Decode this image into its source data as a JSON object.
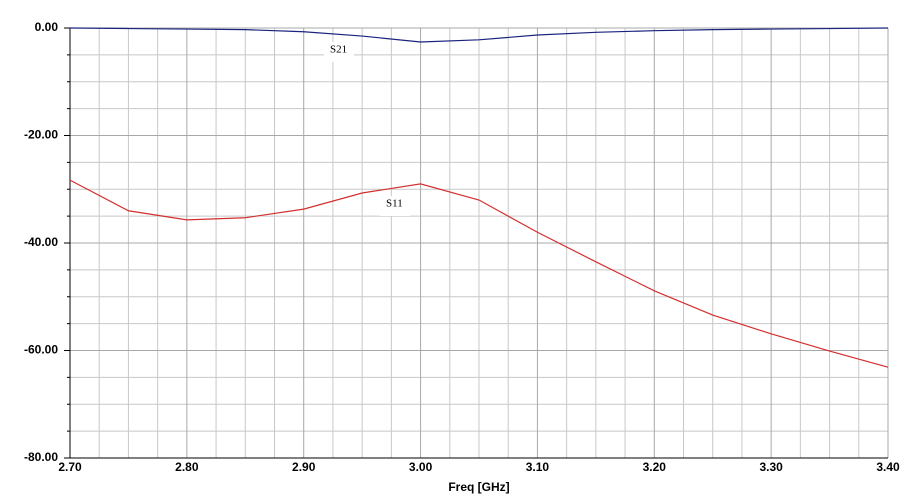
{
  "chart_data": {
    "type": "line",
    "x_label": "Freq [GHz]",
    "x": [
      2.7,
      2.75,
      2.8,
      2.85,
      2.9,
      2.95,
      3.0,
      3.05,
      3.1,
      3.15,
      3.2,
      3.25,
      3.3,
      3.35,
      3.4
    ],
    "series": [
      {
        "name": "S21",
        "color": "#1a237e",
        "values": [
          0,
          -0.1,
          -0.2,
          -0.3,
          -0.7,
          -1.5,
          -2.6,
          -2.2,
          -1.3,
          -0.8,
          -0.5,
          -0.3,
          -0.2,
          -0.1,
          0
        ]
      },
      {
        "name": "S11",
        "color": "#d32f2f",
        "values": [
          -28.3,
          -34.0,
          -35.7,
          -35.3,
          -33.7,
          -30.7,
          -29.0,
          -32.0,
          -38.0,
          -43.5,
          -48.9,
          -53.4,
          -56.9,
          -60.1,
          -63.1
        ]
      }
    ],
    "xlim": [
      2.7,
      3.4
    ],
    "ylim": [
      -80,
      0
    ],
    "xticks": [
      {
        "value": 2.7,
        "label": "2.70"
      },
      {
        "value": 2.8,
        "label": "2.80"
      },
      {
        "value": 2.9,
        "label": "2.90"
      },
      {
        "value": 3.0,
        "label": "3.00"
      },
      {
        "value": 3.1,
        "label": "3.10"
      },
      {
        "value": 3.2,
        "label": "3.20"
      },
      {
        "value": 3.3,
        "label": "3.30"
      },
      {
        "value": 3.4,
        "label": "3.40"
      }
    ],
    "yticks": [
      {
        "value": -80,
        "label": "-80.00"
      },
      {
        "value": -60,
        "label": "-60.00"
      },
      {
        "value": -40,
        "label": "-40.00"
      },
      {
        "value": -20,
        "label": "-20.00"
      },
      {
        "value": 0,
        "label": "0.00"
      }
    ],
    "grid": true
  }
}
